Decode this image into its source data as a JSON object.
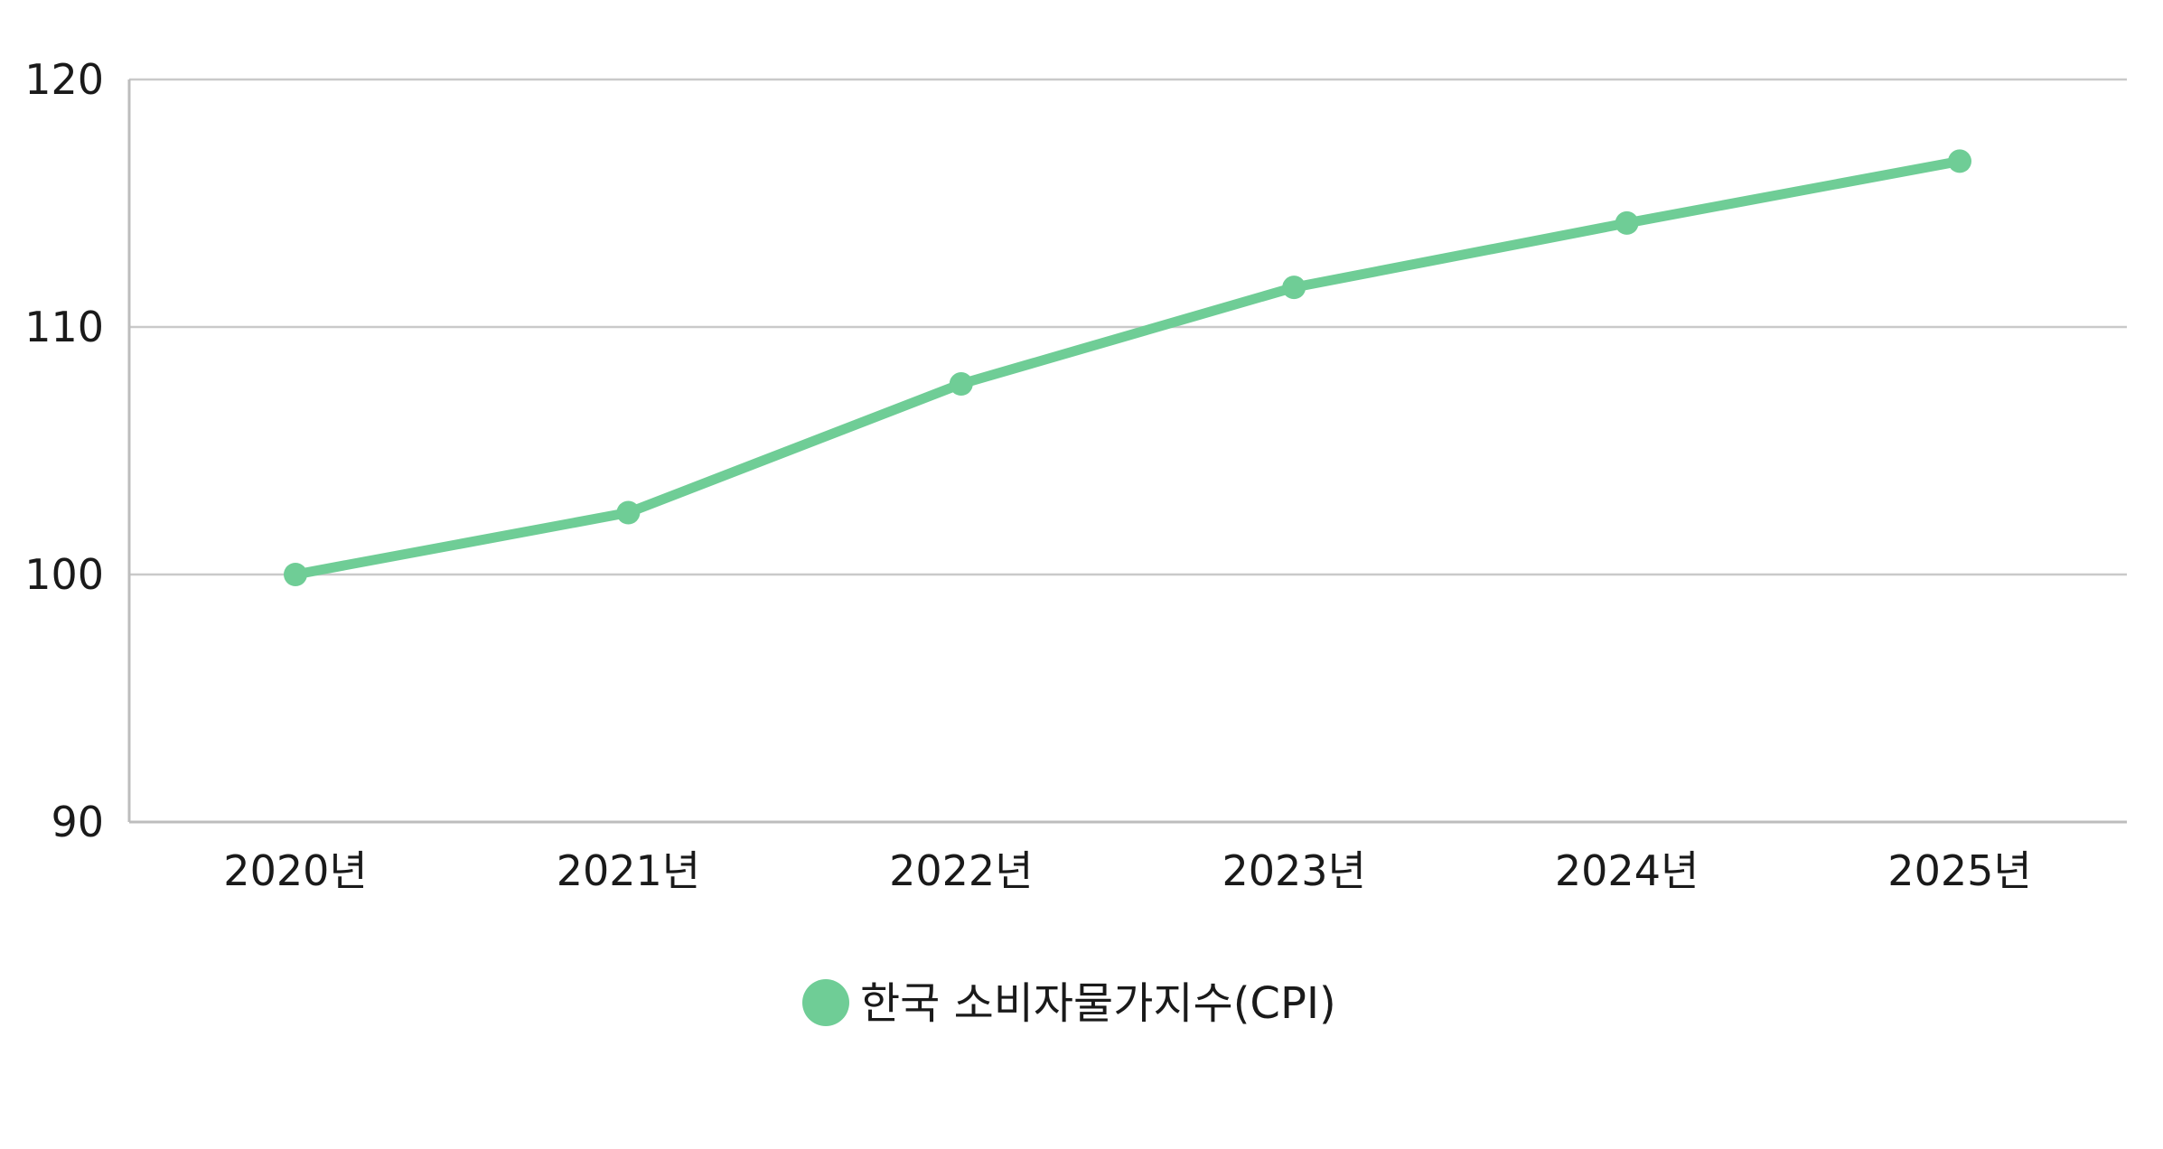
{
  "chart_data": {
    "type": "line",
    "title": "",
    "xlabel": "",
    "ylabel": "",
    "categories": [
      "2020년",
      "2021년",
      "2022년",
      "2023년",
      "2024년",
      "2025년"
    ],
    "series": [
      {
        "name": "한국 소비자물가지수(CPI)",
        "color": "#6fcd96",
        "values": [
          100.0,
          102.5,
          107.7,
          111.6,
          114.2,
          116.7
        ]
      }
    ],
    "ylim": [
      90,
      120
    ],
    "yticks": [
      "90",
      "100",
      "110",
      "120"
    ],
    "grid": true,
    "legend": "bottom-center"
  }
}
